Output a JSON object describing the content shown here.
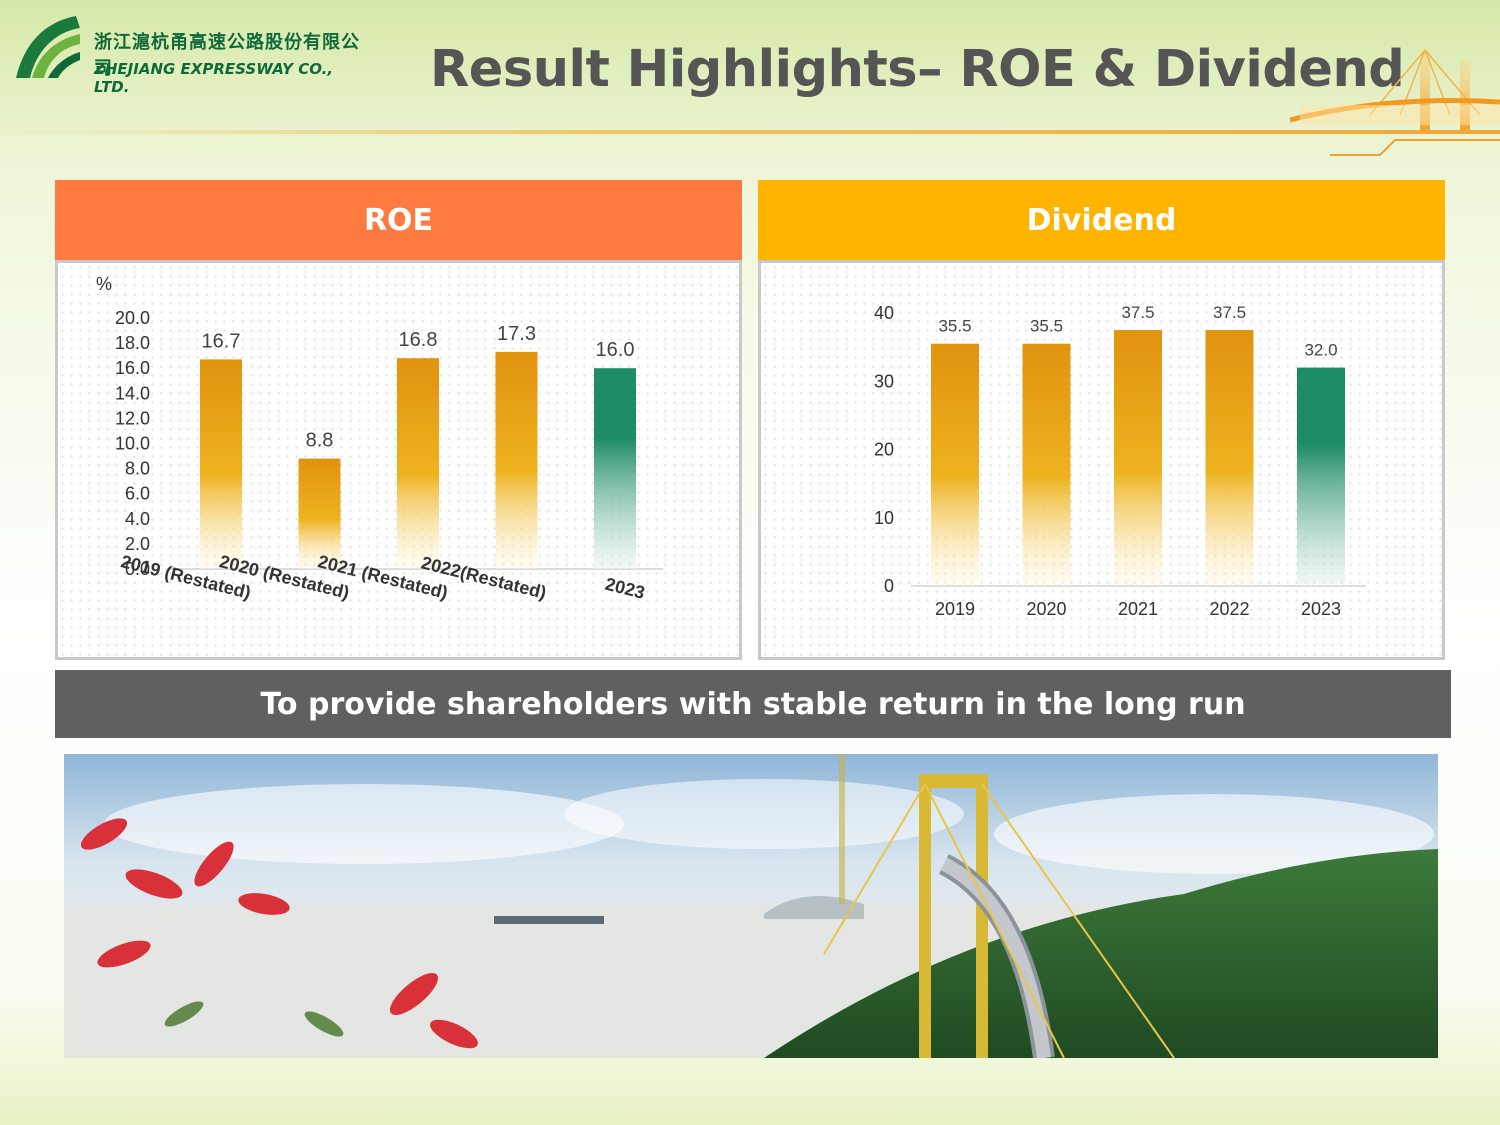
{
  "header": {
    "company_cn": "浙江滬杭甬高速公路股份有限公司",
    "company_en": "ZHEJIANG EXPRESSWAY CO., LTD.",
    "title": "Result Highlights– ROE & Dividend"
  },
  "roe_panel": {
    "title": "ROE",
    "unit": "%"
  },
  "dividend_panel": {
    "title": "Dividend"
  },
  "banner": {
    "text": "To provide shareholders with stable return in the long run"
  },
  "colors": {
    "orange_header": "#ff7a40",
    "yellow_header": "#ffb400",
    "bar_gold": "#e29a18",
    "bar_green": "#1f8c66",
    "banner": "#606060"
  },
  "chart_data": [
    {
      "type": "bar",
      "title": "ROE",
      "ylabel": "%",
      "categories": [
        "2019 (Restated)",
        "2020 (Restated)",
        "2021 (Restated)",
        "2022(Restated)",
        "2023"
      ],
      "values": [
        16.7,
        8.8,
        16.8,
        17.3,
        16.0
      ],
      "value_labels": [
        "16.7",
        "8.8",
        "16.8",
        "17.3",
        "16.0"
      ],
      "yticks": [
        "0.0",
        "2.0",
        "4.0",
        "6.0",
        "8.0",
        "10.0",
        "12.0",
        "14.0",
        "16.0",
        "18.0",
        "20.0"
      ],
      "ylim": [
        0,
        20
      ],
      "highlight_last": true,
      "grid": false
    },
    {
      "type": "bar",
      "title": "Dividend",
      "categories": [
        "2019",
        "2020",
        "2021",
        "2022",
        "2023"
      ],
      "values": [
        35.5,
        35.5,
        37.5,
        37.5,
        32.0
      ],
      "value_labels": [
        "35.5",
        "35.5",
        "37.5",
        "37.5",
        "32.0"
      ],
      "yticks": [
        "0",
        "10",
        "20",
        "30",
        "40"
      ],
      "ylim": [
        0,
        40
      ],
      "highlight_last": true,
      "grid": false
    }
  ]
}
